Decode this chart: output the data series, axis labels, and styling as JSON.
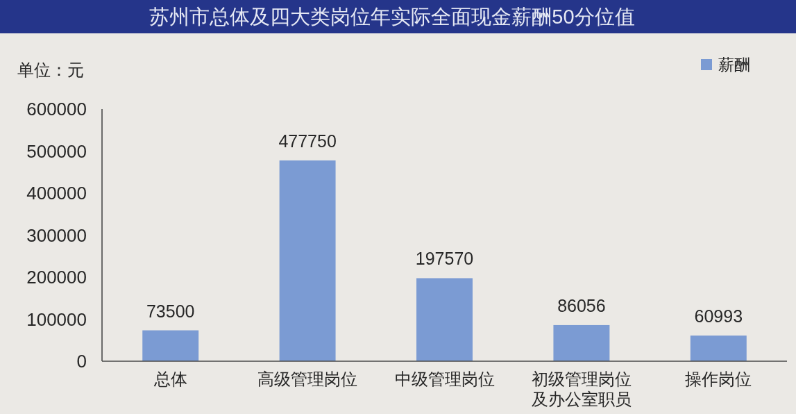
{
  "chart_data": {
    "type": "bar",
    "title": "苏州市总体及四大类岗位年实际全面现金薪酬50分位值",
    "ylabel": "单位：元",
    "categories": [
      "总体",
      "高级管理岗位",
      "中级管理岗位",
      "初级管理岗位及办公室职员",
      "操作岗位"
    ],
    "series": [
      {
        "name": "薪酬",
        "color": "#7b9bd3",
        "values": [
          73500,
          477750,
          197570,
          86056,
          60993
        ]
      }
    ],
    "ylim": [
      0,
      600000
    ],
    "yticks": [
      0,
      100000,
      200000,
      300000,
      400000,
      500000,
      600000
    ],
    "data_labels": true,
    "legend": "top right"
  }
}
